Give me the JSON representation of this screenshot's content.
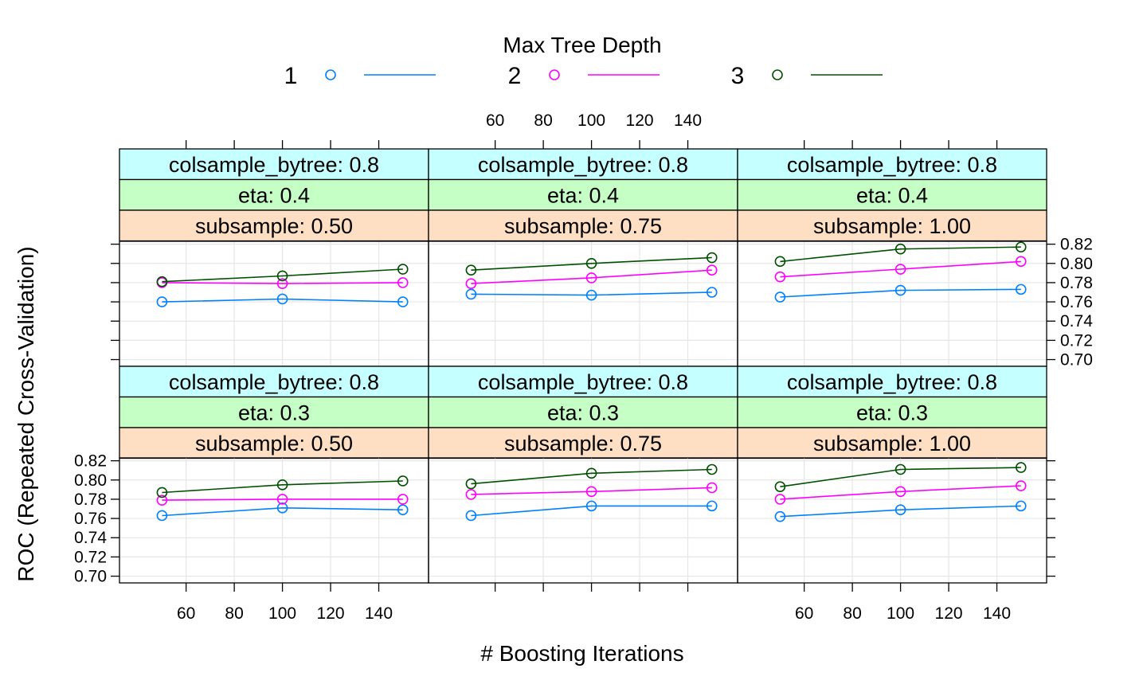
{
  "chart_data": {
    "type": "line",
    "xlabel": "# Boosting Iterations",
    "ylabel": "ROC (Repeated Cross-Validation)",
    "x": [
      50,
      100,
      150
    ],
    "xlim": [
      33,
      160
    ],
    "ylim": [
      0.693,
      0.823
    ],
    "x_ticks": [
      60,
      80,
      100,
      120,
      140
    ],
    "y_ticks": [
      0.7,
      0.72,
      0.74,
      0.76,
      0.78,
      0.8,
      0.82
    ],
    "grid": true,
    "legend": {
      "title": "Max Tree Depth",
      "placement": "top",
      "entries": [
        {
          "name": "1",
          "color": "#0080ff"
        },
        {
          "name": "2",
          "color": "#ff00ff"
        },
        {
          "name": "3",
          "color": "#005000"
        }
      ]
    },
    "strip_colors": {
      "colsample_bytree": "#c5ffff",
      "eta": "#c5ffc5",
      "subsample": "#ffdfc4"
    },
    "panels": [
      {
        "strips": [
          "colsample_bytree: 0.8",
          "eta: 0.4",
          "subsample: 0.50"
        ],
        "series": [
          {
            "name": "1",
            "values": [
              0.76,
              0.763,
              0.76
            ]
          },
          {
            "name": "2",
            "values": [
              0.78,
              0.779,
              0.78
            ]
          },
          {
            "name": "3",
            "values": [
              0.781,
              0.787,
              0.794
            ]
          }
        ]
      },
      {
        "strips": [
          "colsample_bytree: 0.8",
          "eta: 0.4",
          "subsample: 0.75"
        ],
        "series": [
          {
            "name": "1",
            "values": [
              0.768,
              0.767,
              0.77
            ]
          },
          {
            "name": "2",
            "values": [
              0.779,
              0.785,
              0.793
            ]
          },
          {
            "name": "3",
            "values": [
              0.793,
              0.8,
              0.806
            ]
          }
        ]
      },
      {
        "strips": [
          "colsample_bytree: 0.8",
          "eta: 0.4",
          "subsample: 1.00"
        ],
        "series": [
          {
            "name": "1",
            "values": [
              0.765,
              0.772,
              0.773
            ]
          },
          {
            "name": "2",
            "values": [
              0.786,
              0.794,
              0.802
            ]
          },
          {
            "name": "3",
            "values": [
              0.802,
              0.815,
              0.817
            ]
          }
        ]
      },
      {
        "strips": [
          "colsample_bytree: 0.8",
          "eta: 0.3",
          "subsample: 0.50"
        ],
        "series": [
          {
            "name": "1",
            "values": [
              0.763,
              0.771,
              0.769
            ]
          },
          {
            "name": "2",
            "values": [
              0.779,
              0.78,
              0.78
            ]
          },
          {
            "name": "3",
            "values": [
              0.787,
              0.795,
              0.799
            ]
          }
        ]
      },
      {
        "strips": [
          "colsample_bytree: 0.8",
          "eta: 0.3",
          "subsample: 0.75"
        ],
        "series": [
          {
            "name": "1",
            "values": [
              0.763,
              0.773,
              0.773
            ]
          },
          {
            "name": "2",
            "values": [
              0.785,
              0.788,
              0.792
            ]
          },
          {
            "name": "3",
            "values": [
              0.796,
              0.807,
              0.811
            ]
          }
        ]
      },
      {
        "strips": [
          "colsample_bytree: 0.8",
          "eta: 0.3",
          "subsample: 1.00"
        ],
        "series": [
          {
            "name": "1",
            "values": [
              0.762,
              0.769,
              0.773
            ]
          },
          {
            "name": "2",
            "values": [
              0.78,
              0.788,
              0.794
            ]
          },
          {
            "name": "3",
            "values": [
              0.793,
              0.811,
              0.813
            ]
          }
        ]
      }
    ]
  }
}
